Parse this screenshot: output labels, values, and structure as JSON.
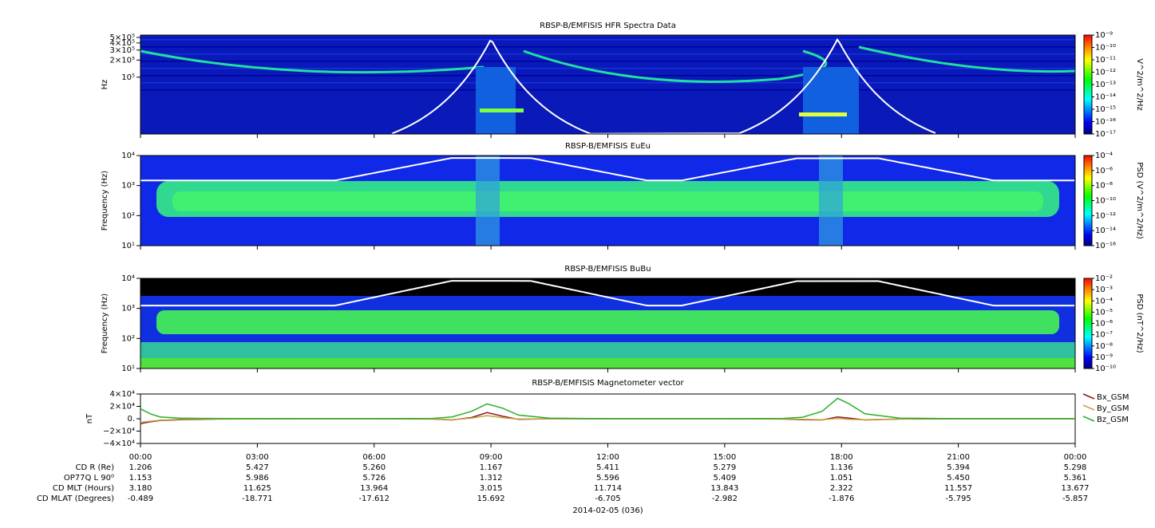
{
  "chart_data": [
    {
      "type": "spectrogram",
      "title": "RBSP-B/EMFISIS  HFR Spectra Data",
      "ylabel": "Hz",
      "ylog": true,
      "ylim": [
        10000,
        550000
      ],
      "yticks": [
        {
          "value": 500000,
          "label": "5×10⁵"
        },
        {
          "value": 400000,
          "label": "4×10⁵"
        },
        {
          "value": 300000,
          "label": "3×10⁵"
        },
        {
          "value": 200000,
          "label": "2×10⁵"
        },
        {
          "value": 100000,
          "label": "10⁵"
        }
      ],
      "colorbar": {
        "label": "V^2/m^2/Hz",
        "lim": [
          1e-17,
          1e-09
        ],
        "ticks": [
          {
            "value": 1e-09,
            "label": "10⁻⁹"
          },
          {
            "value": 1e-10,
            "label": "10⁻¹⁰"
          },
          {
            "value": 1e-11,
            "label": "10⁻¹¹"
          },
          {
            "value": 1e-12,
            "label": "10⁻¹²"
          },
          {
            "value": 1e-13,
            "label": "10⁻¹³"
          },
          {
            "value": 1e-14,
            "label": "10⁻¹⁴"
          },
          {
            "value": 1e-15,
            "label": "10⁻¹⁵"
          },
          {
            "value": 1e-16,
            "label": "10⁻¹⁶"
          },
          {
            "value": 1e-17,
            "label": "10⁻¹⁷"
          }
        ]
      }
    },
    {
      "type": "spectrogram",
      "title": "RBSP-B/EMFISIS  EuEu",
      "ylabel": "Frequency (Hz)",
      "ylog": true,
      "ylim": [
        10,
        10000
      ],
      "yticks": [
        {
          "value": 10000,
          "label": "10⁴"
        },
        {
          "value": 1000,
          "label": "10³"
        },
        {
          "value": 100,
          "label": "10²"
        },
        {
          "value": 10,
          "label": "10¹"
        }
      ],
      "colorbar": {
        "label": "PSD (V^2/m^2/Hz)",
        "lim": [
          1e-16,
          0.0001
        ],
        "ticks": [
          {
            "value": 0.0001,
            "label": "10⁻⁴"
          },
          {
            "value": 1e-06,
            "label": "10⁻⁶"
          },
          {
            "value": 1e-08,
            "label": "10⁻⁸"
          },
          {
            "value": 1e-10,
            "label": "10⁻¹⁰"
          },
          {
            "value": 1e-12,
            "label": "10⁻¹²"
          },
          {
            "value": 1e-14,
            "label": "10⁻¹⁴"
          },
          {
            "value": 1e-16,
            "label": "10⁻¹⁶"
          }
        ]
      }
    },
    {
      "type": "spectrogram",
      "title": "RBSP-B/EMFISIS  BuBu",
      "ylabel": "Frequency (Hz)",
      "ylog": true,
      "ylim": [
        10,
        10000
      ],
      "yticks": [
        {
          "value": 10000,
          "label": "10⁴"
        },
        {
          "value": 1000,
          "label": "10³"
        },
        {
          "value": 100,
          "label": "10²"
        },
        {
          "value": 10,
          "label": "10¹"
        }
      ],
      "colorbar": {
        "label": "PSD (nT^2/Hz)",
        "lim": [
          1e-10,
          0.01
        ],
        "ticks": [
          {
            "value": 0.01,
            "label": "10⁻²"
          },
          {
            "value": 0.001,
            "label": "10⁻³"
          },
          {
            "value": 0.0001,
            "label": "10⁻⁴"
          },
          {
            "value": 1e-05,
            "label": "10⁻⁵"
          },
          {
            "value": 1e-06,
            "label": "10⁻⁶"
          },
          {
            "value": 1e-07,
            "label": "10⁻⁷"
          },
          {
            "value": 1e-08,
            "label": "10⁻⁸"
          },
          {
            "value": 1e-09,
            "label": "10⁻⁹"
          },
          {
            "value": 1e-10,
            "label": "10⁻¹⁰"
          }
        ]
      }
    },
    {
      "type": "line",
      "title": "RBSP-B/EMFISIS  Magnetometer vector",
      "ylabel": "nT",
      "ylim": [
        -40000,
        40000
      ],
      "yticks": [
        {
          "value": 40000,
          "label": "4×10⁴"
        },
        {
          "value": 20000,
          "label": "2×10⁴"
        },
        {
          "value": 0,
          "label": "0."
        },
        {
          "value": -20000,
          "label": "−2×10⁴"
        },
        {
          "value": -40000,
          "label": "−4×10⁴"
        }
      ],
      "xlim": [
        0,
        24
      ],
      "xticks": [
        {
          "value": 0,
          "label": "00:00"
        },
        {
          "value": 3,
          "label": "03:00"
        },
        {
          "value": 6,
          "label": "06:00"
        },
        {
          "value": 9,
          "label": "09:00"
        },
        {
          "value": 12,
          "label": "12:00"
        },
        {
          "value": 15,
          "label": "15:00"
        },
        {
          "value": 18,
          "label": "18:00"
        },
        {
          "value": 21,
          "label": "21:00"
        },
        {
          "value": 24,
          "label": "00:00"
        }
      ],
      "x": [
        0,
        0.25,
        0.5,
        1,
        2,
        4,
        6,
        7.5,
        8,
        8.5,
        8.9,
        9.3,
        9.7,
        10.5,
        12,
        15,
        16.5,
        17,
        17.5,
        17.9,
        18.2,
        18.6,
        19.5,
        21,
        24
      ],
      "series": [
        {
          "name": "Bx_GSM",
          "color": "#8b1a1a",
          "values": [
            -8000,
            -5000,
            -3000,
            -1500,
            -500,
            0,
            0,
            -500,
            -2000,
            2000,
            10000,
            4000,
            -1000,
            0,
            0,
            0,
            -500,
            -1500,
            -2000,
            3000,
            1000,
            -2000,
            -500,
            0,
            0
          ]
        },
        {
          "name": "By_GSM",
          "color": "#c8a040",
          "values": [
            -6000,
            -4000,
            -2500,
            -1000,
            -300,
            0,
            0,
            -300,
            -1500,
            1000,
            5000,
            1500,
            -500,
            0,
            0,
            0,
            -300,
            -1000,
            -1500,
            500,
            -1000,
            -1500,
            -300,
            0,
            0
          ]
        },
        {
          "name": "Bz_GSM",
          "color": "#2ab02a",
          "values": [
            16000,
            8000,
            3000,
            1000,
            300,
            0,
            0,
            500,
            3000,
            12000,
            24000,
            17000,
            6000,
            1000,
            0,
            0,
            500,
            2500,
            12000,
            33000,
            24000,
            8000,
            1000,
            0,
            0
          ]
        }
      ]
    }
  ],
  "ephemeris": {
    "rows": [
      {
        "label": "CD R (Re)",
        "values": [
          "1.206",
          "5.427",
          "5.260",
          "1.167",
          "5.411",
          "5.279",
          "1.136",
          "5.394",
          "5.298"
        ]
      },
      {
        "label": "OP77Q L 90⁰",
        "values": [
          "1.153",
          "5.986",
          "5.726",
          "1.312",
          "5.596",
          "5.409",
          "1.051",
          "5.450",
          "5.361"
        ]
      },
      {
        "label": "CD MLT (Hours)",
        "values": [
          "3.180",
          "11.625",
          "13.964",
          "3.015",
          "11.714",
          "13.843",
          "2.322",
          "11.557",
          "13.677"
        ]
      },
      {
        "label": "CD MLAT (Degrees)",
        "values": [
          "-0.489",
          "-18.771",
          "-17.612",
          "15.692",
          "-6.705",
          "-2.982",
          "-1.876",
          "-5.795",
          "-5.857"
        ]
      }
    ],
    "date": "2014-02-05 (036)"
  }
}
